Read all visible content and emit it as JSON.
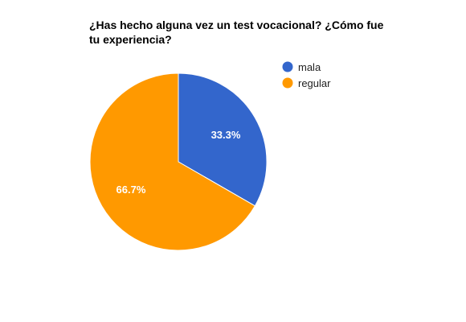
{
  "chart_data": {
    "type": "pie",
    "title": "¿Has hecho alguna vez un test vocacional? ¿Cómo fue tu experiencia?",
    "categories": [
      "mala",
      "regular"
    ],
    "values": [
      33.3,
      66.7
    ],
    "labels": [
      "33.3%",
      "66.7%"
    ],
    "colors": [
      "#3366cc",
      "#ff9900"
    ],
    "legend_position": "right"
  }
}
